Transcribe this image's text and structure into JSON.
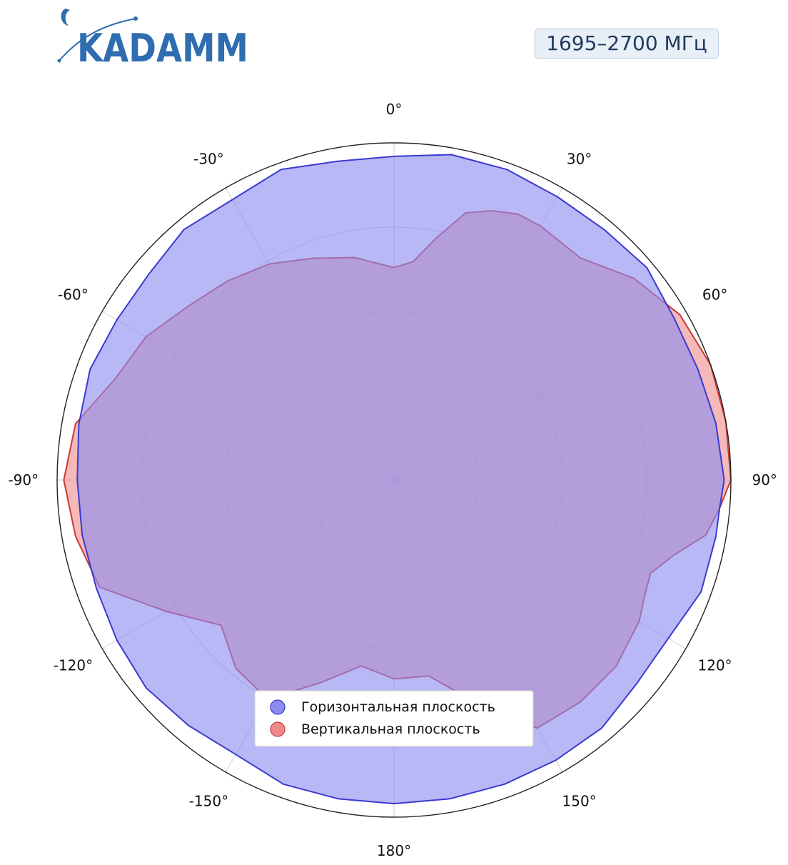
{
  "header": {
    "logo_text": "KADAMM",
    "frequency_label": "1695–2700 МГц"
  },
  "colors": {
    "logo": "#2f6db0",
    "horizontal_fill": "#8c8cf0",
    "horizontal_stroke": "#3a3acf",
    "vertical_fill": "#ee8a8a",
    "vertical_stroke": "#c93a3a",
    "grid": "#9a9ac8",
    "frame": "#222222"
  },
  "chart_data": {
    "type": "polar-area",
    "angle_unit": "deg",
    "direction": "clockwise",
    "zero_location": "top",
    "rlim": [
      0,
      1
    ],
    "radial_ticks": [
      0.25,
      0.5,
      0.75
    ],
    "grid": true,
    "legend_position": "bottom-center",
    "angle_ticks": [
      {
        "angle": 0,
        "label": "0°"
      },
      {
        "angle": 30,
        "label": "30°"
      },
      {
        "angle": 60,
        "label": "60°"
      },
      {
        "angle": 90,
        "label": "90°"
      },
      {
        "angle": 120,
        "label": "120°"
      },
      {
        "angle": 150,
        "label": "150°"
      },
      {
        "angle": 180,
        "label": "180°"
      },
      {
        "angle": -150,
        "label": "-150°"
      },
      {
        "angle": -120,
        "label": "-120°"
      },
      {
        "angle": -90,
        "label": "-90°"
      },
      {
        "angle": -60,
        "label": "-60°"
      },
      {
        "angle": -30,
        "label": "-30°"
      }
    ],
    "series": [
      {
        "name": "Горизонтальная плоскость",
        "key": "horizontal",
        "points": [
          [
            0,
            0.96
          ],
          [
            10,
            0.98
          ],
          [
            20,
            0.98
          ],
          [
            30,
            0.97
          ],
          [
            40,
            0.97
          ],
          [
            50,
            0.98
          ],
          [
            60,
            0.96
          ],
          [
            70,
            0.96
          ],
          [
            80,
            0.97
          ],
          [
            90,
            0.98
          ],
          [
            95,
            0.97
          ],
          [
            100,
            0.97
          ],
          [
            110,
            0.97
          ],
          [
            120,
            0.94
          ],
          [
            130,
            0.94
          ],
          [
            140,
            0.96
          ],
          [
            150,
            0.96
          ],
          [
            160,
            0.96
          ],
          [
            170,
            0.96
          ],
          [
            180,
            0.96
          ],
          [
            -170,
            0.96
          ],
          [
            -160,
            0.96
          ],
          [
            -150,
            0.94
          ],
          [
            -140,
            0.95
          ],
          [
            -130,
            0.96
          ],
          [
            -120,
            0.95
          ],
          [
            -110,
            0.94
          ],
          [
            -100,
            0.94
          ],
          [
            -90,
            0.94
          ],
          [
            -80,
            0.95
          ],
          [
            -70,
            0.96
          ],
          [
            -60,
            0.95
          ],
          [
            -50,
            0.95
          ],
          [
            -40,
            0.97
          ],
          [
            -30,
            0.96
          ],
          [
            -20,
            0.98
          ],
          [
            -10,
            0.96
          ]
        ]
      },
      {
        "name": "Вертикальная плоскость",
        "key": "vertical",
        "points": [
          [
            0,
            0.63
          ],
          [
            5,
            0.65
          ],
          [
            10,
            0.73
          ],
          [
            15,
            0.82
          ],
          [
            20,
            0.85
          ],
          [
            25,
            0.87
          ],
          [
            30,
            0.87
          ],
          [
            40,
            0.86
          ],
          [
            50,
            0.93
          ],
          [
            60,
            0.98
          ],
          [
            70,
            1.0
          ],
          [
            80,
            1.0
          ],
          [
            90,
            1.0
          ],
          [
            95,
            0.97
          ],
          [
            100,
            0.94
          ],
          [
            105,
            0.86
          ],
          [
            110,
            0.81
          ],
          [
            115,
            0.82
          ],
          [
            120,
            0.84
          ],
          [
            130,
            0.86
          ],
          [
            140,
            0.86
          ],
          [
            150,
            0.85
          ],
          [
            160,
            0.7
          ],
          [
            170,
            0.59
          ],
          [
            180,
            0.59
          ],
          [
            -170,
            0.56
          ],
          [
            -160,
            0.64
          ],
          [
            -150,
            0.75
          ],
          [
            -140,
            0.73
          ],
          [
            -130,
            0.67
          ],
          [
            -120,
            0.78
          ],
          [
            -110,
            0.93
          ],
          [
            -100,
            0.96
          ],
          [
            -90,
            0.98
          ],
          [
            -80,
            0.96
          ],
          [
            -70,
            0.88
          ],
          [
            -60,
            0.85
          ],
          [
            -50,
            0.8
          ],
          [
            -40,
            0.77
          ],
          [
            -30,
            0.74
          ],
          [
            -20,
            0.7
          ],
          [
            -10,
            0.67
          ]
        ]
      }
    ]
  }
}
